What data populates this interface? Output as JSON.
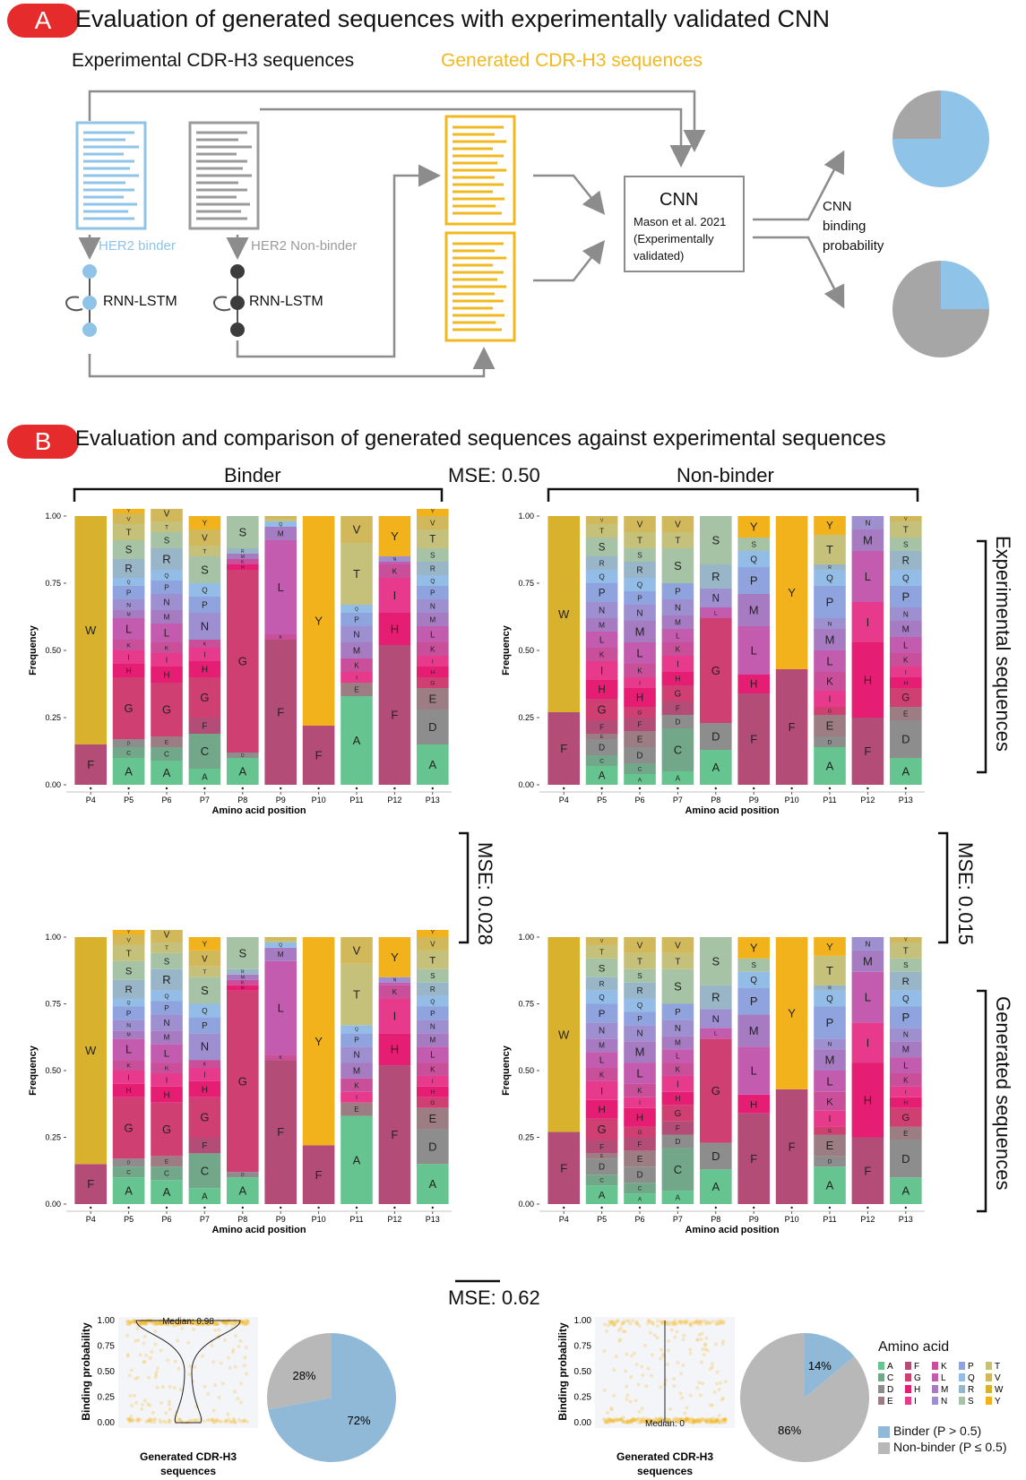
{
  "panelA": {
    "badge": "A",
    "title": "Evaluation of generated sequences with experimentally validated CNN",
    "exp_label": "Experimental CDR-H3 sequences",
    "gen_label": "Generated  CDR-H3 sequences",
    "binder_label": "HER2 binder",
    "nonbinder_label": "HER2 Non-binder",
    "rnn_label": "RNN-LSTM",
    "cnn_title": "CNN",
    "cnn_ref1": "Mason et al. 2021",
    "cnn_ref2": "(Experimentally",
    "cnn_ref3": "validated)",
    "prob_label1": "CNN",
    "prob_label2": "binding",
    "prob_label3": "probability",
    "colors": {
      "binder": "#8fc3e8",
      "nonbinder": "#9b9b9b",
      "generated": "#f2b81f",
      "arrow": "#8c8c8c"
    }
  },
  "panelB": {
    "badge": "B",
    "title": "Evaluation and comparison of generated sequences against experimental sequences",
    "binder_header": "Binder",
    "nonbinder_header": "Non-binder",
    "mse_top": "MSE: 0.50",
    "mse_left": "MSE: 0.028",
    "mse_right": "MSE: 0.015",
    "mse_bottom": "MSE: 0.62",
    "side_exp": "Experimental sequences",
    "side_gen": "Generated sequences"
  },
  "plots": {
    "ylabel": "Frequency",
    "ylabel_alt": "Frequency",
    "xlabel": "Amino acid position",
    "positions": [
      "P4",
      "P5",
      "P6",
      "P7",
      "P8",
      "P9",
      "P10",
      "P11",
      "P12",
      "P13"
    ],
    "yticks": [
      "1.00",
      "0.75",
      "0.50",
      "0.25",
      "0.00"
    ]
  },
  "chart_data": [
    {
      "type": "bar",
      "title": "",
      "xlabel": "Amino acid position",
      "ylabel": "Frequency",
      "ylim": [
        0,
        1
      ],
      "categories": [
        "P4",
        "P5",
        "P6",
        "P7",
        "P8",
        "P9",
        "P10",
        "P11",
        "P12",
        "P13"
      ],
      "series": [
        {
          "values": [
            [
              [
                "F",
                0.15
              ],
              [
                "W",
                0.85
              ]
            ],
            [
              [
                "A",
                0.1
              ],
              [
                "C",
                0.04
              ],
              [
                "D",
                0.03
              ],
              [
                "G",
                0.23
              ],
              [
                "H",
                0.05
              ],
              [
                "I",
                0.05
              ],
              [
                "K",
                0.04
              ],
              [
                "L",
                0.08
              ],
              [
                "M",
                0.03
              ],
              [
                "N",
                0.04
              ],
              [
                "P",
                0.05
              ],
              [
                "Q",
                0.03
              ],
              [
                "R",
                0.07
              ],
              [
                "S",
                0.07
              ],
              [
                "T",
                0.06
              ],
              [
                "V",
                0.04
              ],
              [
                "Y",
                0.02
              ]
            ],
            [
              [
                "A",
                0.09
              ],
              [
                "C",
                0.05
              ],
              [
                "E",
                0.04
              ],
              [
                "G",
                0.2
              ],
              [
                "H",
                0.06
              ],
              [
                "I",
                0.05
              ],
              [
                "K",
                0.04
              ],
              [
                "L",
                0.07
              ],
              [
                "M",
                0.05
              ],
              [
                "N",
                0.06
              ],
              [
                "P",
                0.05
              ],
              [
                "Q",
                0.04
              ],
              [
                "R",
                0.08
              ],
              [
                "S",
                0.06
              ],
              [
                "T",
                0.04
              ],
              [
                "V",
                0.06
              ],
              [
                "Y",
                0.02
              ]
            ],
            [
              [
                "A",
                0.06
              ],
              [
                "C",
                0.13
              ],
              [
                "F",
                0.06
              ],
              [
                "G",
                0.15
              ],
              [
                "H",
                0.06
              ],
              [
                "I",
                0.05
              ],
              [
                "K",
                0.03
              ],
              [
                "N",
                0.1
              ],
              [
                "P",
                0.06
              ],
              [
                "Q",
                0.05
              ],
              [
                "S",
                0.1
              ],
              [
                "T",
                0.04
              ],
              [
                "V",
                0.06
              ],
              [
                "Y",
                0.05
              ]
            ],
            [
              [
                "A",
                0.1
              ],
              [
                "D",
                0.02
              ],
              [
                "G",
                0.68
              ],
              [
                "H",
                0.02
              ],
              [
                "K",
                0.02
              ],
              [
                "M",
                0.02
              ],
              [
                "R",
                0.02
              ],
              [
                "S",
                0.12
              ]
            ],
            [
              [
                "F",
                0.54
              ],
              [
                "K",
                0.02
              ],
              [
                "L",
                0.35
              ],
              [
                "M",
                0.05
              ],
              [
                "Q",
                0.02
              ],
              [
                "T",
                0.01
              ],
              [
                "V",
                0.01
              ]
            ],
            [
              [
                "F",
                0.22
              ],
              [
                "Y",
                0.78
              ]
            ],
            [
              [
                "A",
                0.33
              ],
              [
                "E",
                0.05
              ],
              [
                "I",
                0.04
              ],
              [
                "K",
                0.05
              ],
              [
                "M",
                0.06
              ],
              [
                "N",
                0.06
              ],
              [
                "P",
                0.05
              ],
              [
                "Q",
                0.03
              ],
              [
                "T",
                0.23
              ],
              [
                "V",
                0.1
              ]
            ],
            [
              [
                "F",
                0.52
              ],
              [
                "H",
                0.12
              ],
              [
                "I",
                0.13
              ],
              [
                "K",
                0.05
              ],
              [
                "L",
                0.01
              ],
              [
                "N",
                0.02
              ],
              [
                "Y",
                0.15
              ]
            ],
            [
              [
                "A",
                0.15
              ],
              [
                "D",
                0.13
              ],
              [
                "E",
                0.08
              ],
              [
                "G",
                0.04
              ],
              [
                "H",
                0.04
              ],
              [
                "I",
                0.04
              ],
              [
                "K",
                0.05
              ],
              [
                "L",
                0.06
              ],
              [
                "M",
                0.05
              ],
              [
                "N",
                0.05
              ],
              [
                "P",
                0.05
              ],
              [
                "Q",
                0.04
              ],
              [
                "R",
                0.05
              ],
              [
                "S",
                0.05
              ],
              [
                "T",
                0.07
              ],
              [
                "V",
                0.05
              ],
              [
                "Y",
                0.04
              ]
            ]
          ]
        }
      ]
    }
  ],
  "violin_left": {
    "ylabel": "Binding probability",
    "median_label": "Median: 0.98",
    "xlabel1": "Generated CDR-H3",
    "xlabel2": "sequences",
    "yticks": [
      "1.00",
      "0.75",
      "0.50",
      "0.25",
      "0.00"
    ]
  },
  "violin_right": {
    "ylabel": "Binding probability",
    "median_label": "Median: 0",
    "xlabel1": "Generated CDR-H3",
    "xlabel2": "sequences",
    "yticks": [
      "1.00",
      "0.75",
      "0.50",
      "0.25",
      "0.00"
    ]
  },
  "pie_left": {
    "binder_pct": 72,
    "nonbinder_pct": 28,
    "binder_label": "72%",
    "nonbinder_label": "28%"
  },
  "pie_right": {
    "binder_pct": 14,
    "nonbinder_pct": 86,
    "binder_label": "14%",
    "nonbinder_label": "86%"
  },
  "pie_a_top": {
    "binder_pct": 75,
    "nonbinder_pct": 25
  },
  "pie_a_bottom": {
    "binder_pct": 25,
    "nonbinder_pct": 75
  },
  "legend": {
    "title": "Amino acid",
    "letters": [
      "A",
      "F",
      "K",
      "P",
      "T",
      "C",
      "G",
      "L",
      "Q",
      "V",
      "D",
      "H",
      "M",
      "R",
      "W",
      "E",
      "I",
      "N",
      "S",
      "Y"
    ],
    "binder": "Binder (P > 0.5)",
    "nonbinder": "Non-binder (P ≤ 0.5)"
  },
  "aa_colors": {
    "A": "#66c490",
    "C": "#73a78a",
    "D": "#8d8d8d",
    "E": "#9c7d84",
    "F": "#b34d78",
    "G": "#cf3f71",
    "H": "#e51e73",
    "I": "#e83a8c",
    "K": "#c94f9b",
    "L": "#c35cae",
    "M": "#a77bc2",
    "N": "#9d8fd0",
    "P": "#8fa3de",
    "Q": "#93bce7",
    "R": "#98b6c8",
    "S": "#a6c3a6",
    "T": "#c5c07a",
    "V": "#d1b85a",
    "W": "#d9b22d",
    "Y": "#f2b21b"
  }
}
